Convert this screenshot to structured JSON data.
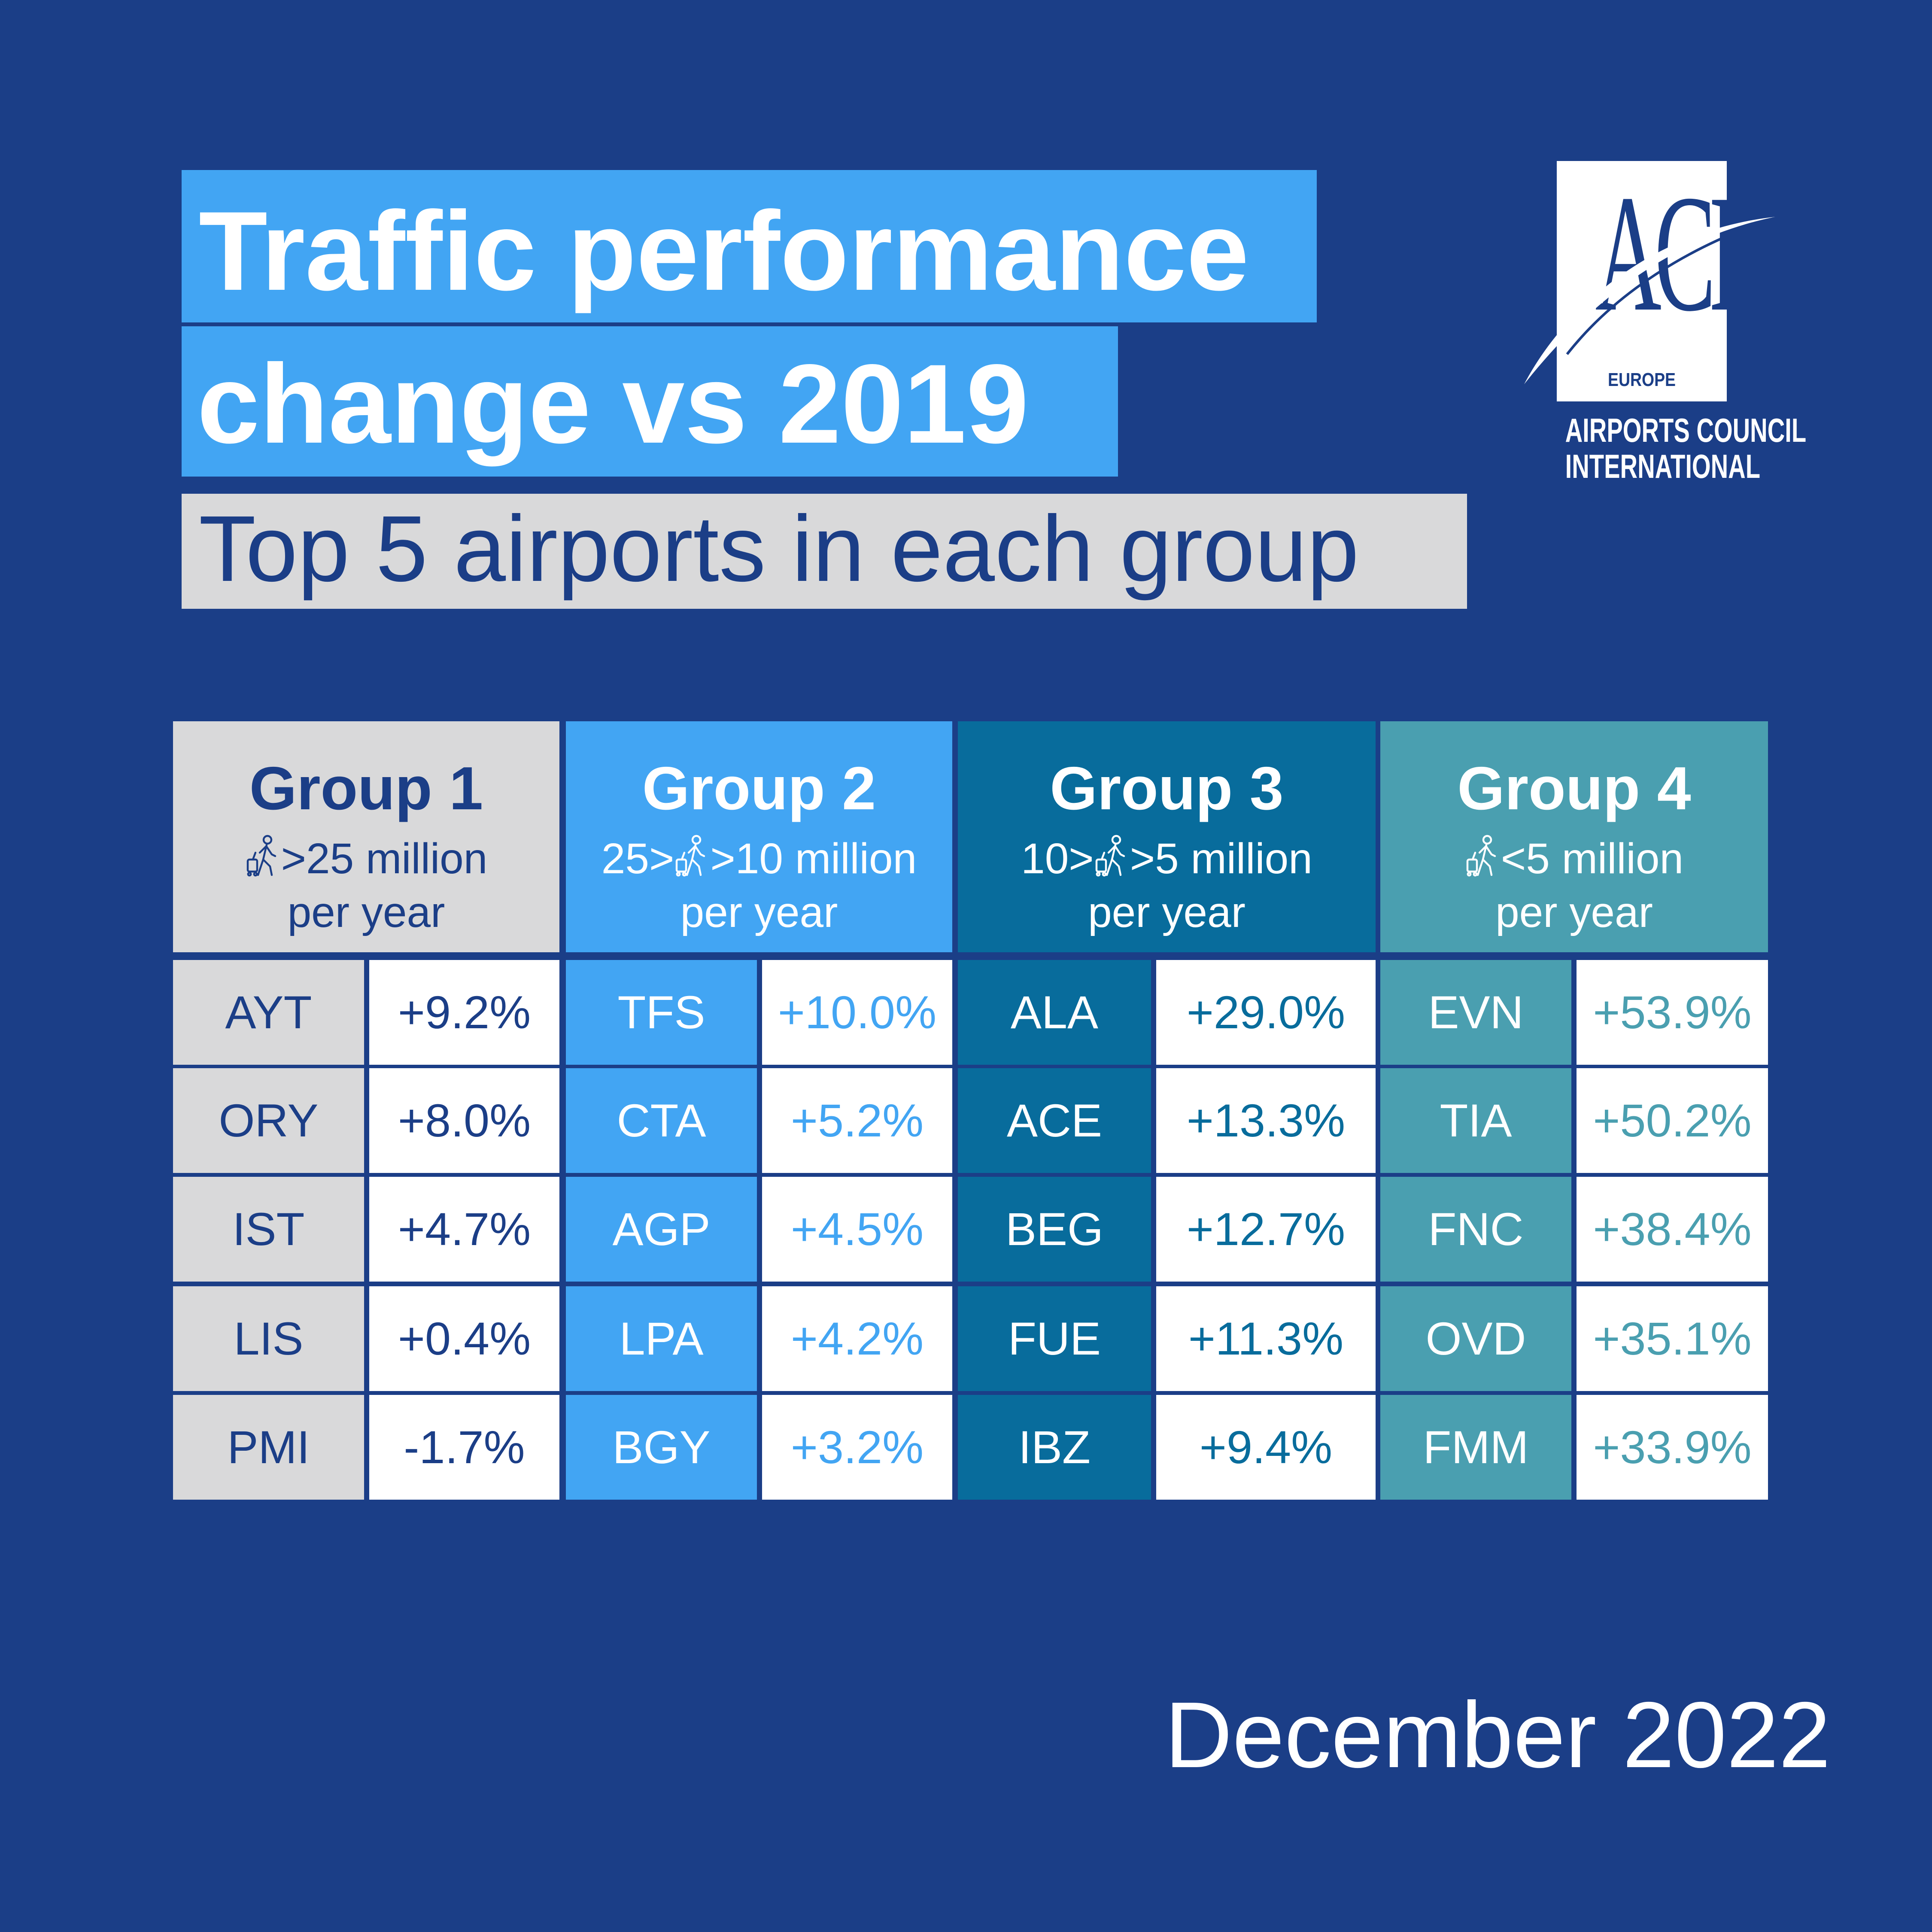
{
  "title_line1": "Traffic performance",
  "title_line2": "change vs 2019",
  "subtitle": "Top 5 airports in each group",
  "date": "December 2022",
  "logo": {
    "letters": "ACI",
    "region": "EUROPE",
    "name_line1": "AIRPORTS COUNCIL",
    "name_line2": "INTERNATIONAL"
  },
  "colors": {
    "background": "#1b3e87",
    "title_bg": "#42a5f3",
    "subtitle_bg": "#d9d9da",
    "group1": "#d9d9da",
    "group2": "#42a5f3",
    "group3": "#086c9c",
    "group4": "#4a9fb0"
  },
  "chart_data": {
    "type": "table",
    "title": "Traffic performance change vs 2019",
    "subtitle": "Top 5 airports in each group",
    "groups": [
      {
        "name": "Group 1",
        "range_before": "",
        "range_after": ">25 million",
        "per_year": "per year",
        "airports": [
          "AYT",
          "ORY",
          "IST",
          "LIS",
          "PMI"
        ],
        "changes": [
          "+9.2%",
          "+8.0%",
          "+4.7%",
          "+0.4%",
          "-1.7%"
        ],
        "values": [
          9.2,
          8.0,
          4.7,
          0.4,
          -1.7
        ]
      },
      {
        "name": "Group 2",
        "range_before": "25>",
        "range_after": ">10 million",
        "per_year": "per year",
        "airports": [
          "TFS",
          "CTA",
          "AGP",
          "LPA",
          "BGY"
        ],
        "changes": [
          "+10.0%",
          "+5.2%",
          "+4.5%",
          "+4.2%",
          "+3.2%"
        ],
        "values": [
          10.0,
          5.2,
          4.5,
          4.2,
          3.2
        ]
      },
      {
        "name": "Group 3",
        "range_before": "10>",
        "range_after": ">5 million",
        "per_year": "per year",
        "airports": [
          "ALA",
          "ACE",
          "BEG",
          "FUE",
          "IBZ"
        ],
        "changes": [
          "+29.0%",
          "+13.3%",
          "+12.7%",
          "+11.3%",
          "+9.4%"
        ],
        "values": [
          29.0,
          13.3,
          12.7,
          11.3,
          9.4
        ]
      },
      {
        "name": "Group 4",
        "range_before": "",
        "range_after": "<5 million",
        "per_year": "per year",
        "airports": [
          "EVN",
          "TIA",
          "FNC",
          "OVD",
          "FMM"
        ],
        "changes": [
          "+53.9%",
          "+50.2%",
          "+38.4%",
          "+35.1%",
          "+33.9%"
        ],
        "values": [
          53.9,
          50.2,
          38.4,
          35.1,
          33.9
        ]
      }
    ]
  }
}
